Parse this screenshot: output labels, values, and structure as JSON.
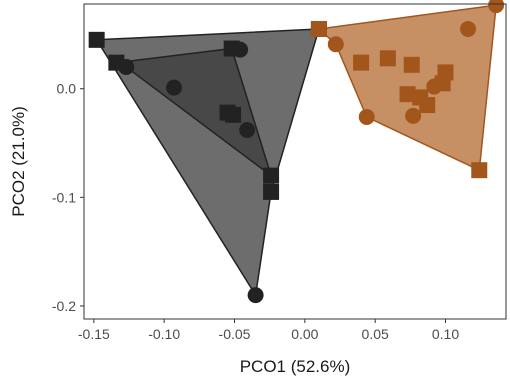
{
  "chart_data": {
    "type": "scatter",
    "xlabel": "PCO1 (52.6%)",
    "ylabel": "PCO2 (21.0%)",
    "xlim": [
      -0.157,
      0.143
    ],
    "ylim": [
      -0.212,
      0.078
    ],
    "x_ticks": [
      {
        "value": -0.15,
        "label": "-0.15"
      },
      {
        "value": -0.1,
        "label": "-0.10"
      },
      {
        "value": -0.05,
        "label": "-0.05"
      },
      {
        "value": 0.0,
        "label": "0.00"
      },
      {
        "value": 0.05,
        "label": "0.05"
      },
      {
        "value": 0.1,
        "label": "0.10"
      }
    ],
    "y_ticks": [
      {
        "value": 0.0,
        "label": "0.0"
      },
      {
        "value": -0.1,
        "label": "-0.1"
      },
      {
        "value": -0.2,
        "label": "-0.2"
      }
    ],
    "grid": false,
    "series": [
      {
        "color": "#222222",
        "hull_fill": "#3c3c3c",
        "points": [
          {
            "x": -0.148,
            "y": 0.045,
            "shape": "square"
          },
          {
            "x": -0.134,
            "y": 0.024,
            "shape": "square"
          },
          {
            "x": -0.127,
            "y": 0.02,
            "shape": "circle"
          },
          {
            "x": -0.093,
            "y": 0.001,
            "shape": "circle"
          },
          {
            "x": -0.052,
            "y": 0.037,
            "shape": "square"
          },
          {
            "x": -0.046,
            "y": 0.036,
            "shape": "circle"
          },
          {
            "x": -0.055,
            "y": -0.022,
            "shape": "square"
          },
          {
            "x": -0.051,
            "y": -0.024,
            "shape": "square"
          },
          {
            "x": -0.041,
            "y": -0.038,
            "shape": "circle"
          },
          {
            "x": -0.024,
            "y": -0.08,
            "shape": "square"
          },
          {
            "x": -0.024,
            "y": -0.095,
            "shape": "square"
          },
          {
            "x": -0.035,
            "y": -0.19,
            "shape": "circle"
          },
          {
            "x": 0.01,
            "y": 0.055,
            "shape": "square"
          }
        ],
        "hulls": [
          [
            [
              -0.148,
              0.045
            ],
            [
              0.01,
              0.055
            ],
            [
              -0.024,
              -0.095
            ],
            [
              -0.035,
              -0.19
            ]
          ],
          [
            [
              -0.134,
              0.024
            ],
            [
              -0.052,
              0.037
            ],
            [
              -0.024,
              -0.08
            ],
            [
              -0.127,
              0.02
            ]
          ]
        ]
      },
      {
        "color": "#a3561c",
        "hull_fill": "#b46a30",
        "points": [
          {
            "x": 0.01,
            "y": 0.055,
            "shape": "square"
          },
          {
            "x": 0.022,
            "y": 0.041,
            "shape": "circle"
          },
          {
            "x": 0.04,
            "y": 0.024,
            "shape": "square"
          },
          {
            "x": 0.059,
            "y": 0.028,
            "shape": "square"
          },
          {
            "x": 0.076,
            "y": 0.022,
            "shape": "square"
          },
          {
            "x": 0.073,
            "y": -0.005,
            "shape": "square"
          },
          {
            "x": 0.082,
            "y": -0.008,
            "shape": "square"
          },
          {
            "x": 0.092,
            "y": 0.002,
            "shape": "circle"
          },
          {
            "x": 0.1,
            "y": 0.015,
            "shape": "square"
          },
          {
            "x": 0.098,
            "y": 0.005,
            "shape": "square"
          },
          {
            "x": 0.087,
            "y": -0.015,
            "shape": "square"
          },
          {
            "x": 0.077,
            "y": -0.025,
            "shape": "circle"
          },
          {
            "x": 0.044,
            "y": -0.026,
            "shape": "circle"
          },
          {
            "x": 0.116,
            "y": 0.055,
            "shape": "circle"
          },
          {
            "x": 0.136,
            "y": 0.077,
            "shape": "circle"
          },
          {
            "x": 0.124,
            "y": -0.075,
            "shape": "square"
          }
        ],
        "hulls": [
          [
            [
              0.01,
              0.055
            ],
            [
              0.136,
              0.077
            ],
            [
              0.124,
              -0.075
            ],
            [
              0.044,
              -0.026
            ],
            [
              0.022,
              0.041
            ]
          ]
        ]
      }
    ]
  }
}
